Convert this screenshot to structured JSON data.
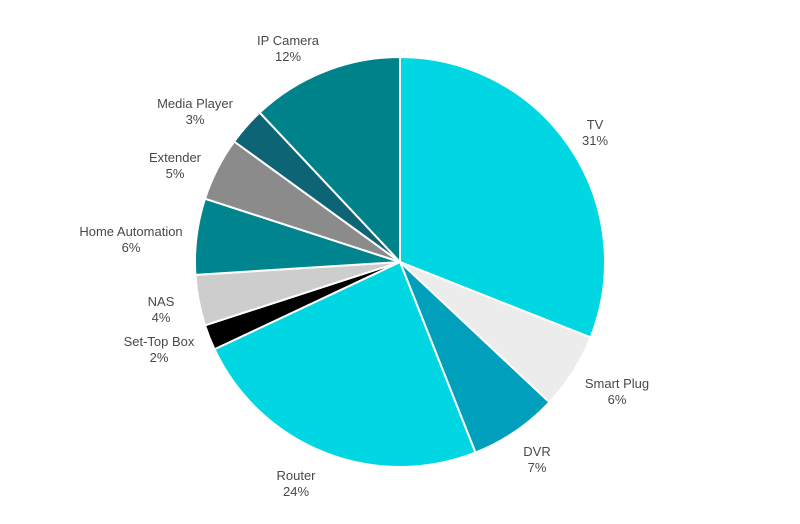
{
  "chart_data": {
    "type": "pie",
    "description": "Share of device types",
    "unit": "%",
    "legend_position": "outside-labels",
    "background_color": "#ffffff",
    "label_text_color": "#47494c",
    "slice_border_color": "#ffffff",
    "slices": [
      {
        "label": "TV",
        "value": 31,
        "percent": "31%",
        "color": "#00d7e3"
      },
      {
        "label": "Smart Plug",
        "value": 6,
        "percent": "6%",
        "color": "#ececec"
      },
      {
        "label": "DVR",
        "value": 7,
        "percent": "7%",
        "color": "#00a0bd"
      },
      {
        "label": "Router",
        "value": 24,
        "percent": "24%",
        "color": "#00d7e3"
      },
      {
        "label": "Set-Top Box",
        "value": 2,
        "percent": "2%",
        "color": "#000000"
      },
      {
        "label": "NAS",
        "value": 4,
        "percent": "4%",
        "color": "#cdcdcd"
      },
      {
        "label": "Home Automation",
        "value": 6,
        "percent": "6%",
        "color": "#00858e"
      },
      {
        "label": "Extender",
        "value": 5,
        "percent": "5%",
        "color": "#8b8b8b"
      },
      {
        "label": "Media Player",
        "value": 3,
        "percent": "3%",
        "color": "#0d6474"
      },
      {
        "label": "IP Camera",
        "value": 12,
        "percent": "12%",
        "color": "#00828b"
      }
    ]
  }
}
